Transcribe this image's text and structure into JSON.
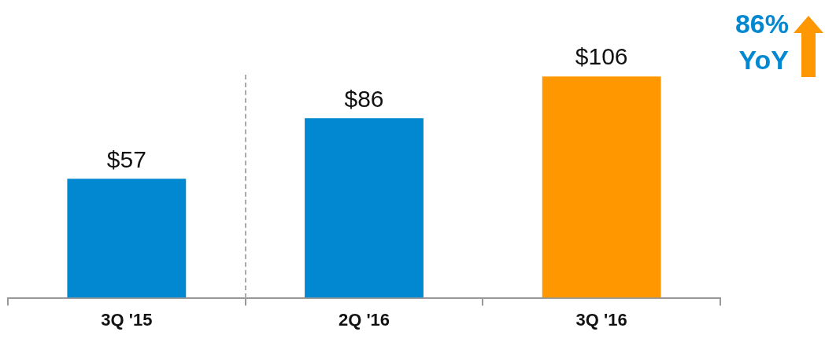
{
  "chart_data": {
    "type": "bar",
    "categories": [
      "3Q '15",
      "2Q '16",
      "3Q '16"
    ],
    "values": [
      57,
      86,
      106
    ],
    "colors": [
      "#0288d1",
      "#0288d1",
      "#ff9800"
    ],
    "value_labels": [
      "$57",
      "$86",
      "$106"
    ],
    "annotations": [
      "86%\nYoY"
    ],
    "grid": false,
    "legend": false
  }
}
